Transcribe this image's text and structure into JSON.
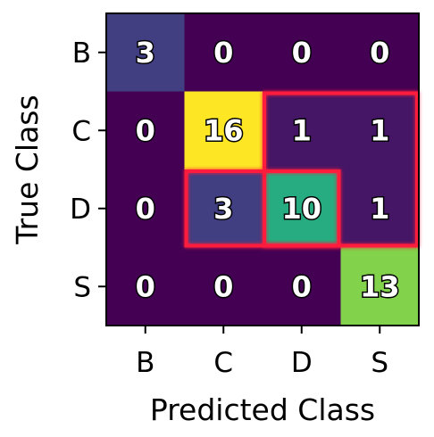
{
  "chart_data": {
    "type": "heatmap",
    "title": "",
    "xlabel": "Predicted Class",
    "ylabel": "True Class",
    "x_categories": [
      "B",
      "C",
      "D",
      "S"
    ],
    "y_categories": [
      "B",
      "C",
      "D",
      "S"
    ],
    "values": [
      [
        3,
        0,
        0,
        0
      ],
      [
        0,
        16,
        1,
        1
      ],
      [
        0,
        3,
        10,
        1
      ],
      [
        0,
        0,
        0,
        13
      ]
    ],
    "colormap": "viridis",
    "value_range": [
      0,
      16
    ],
    "highlight_regions": [
      {
        "rows": [
          1,
          2
        ],
        "cols": [
          2,
          3
        ],
        "color": "#ff1f3d"
      },
      {
        "rows": [
          2,
          2
        ],
        "cols": [
          1,
          2
        ],
        "color": "#ff1f3d"
      }
    ],
    "grid": false,
    "legend": "none"
  }
}
